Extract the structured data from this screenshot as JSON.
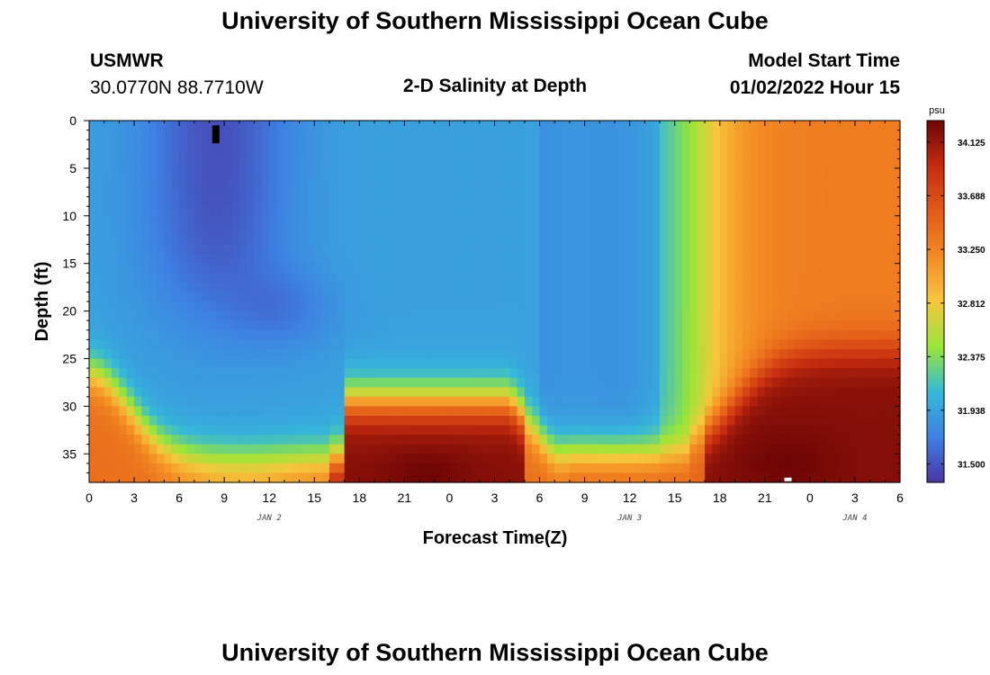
{
  "header": {
    "title": "University of Southern Mississippi Ocean Cube",
    "station": "USMWR",
    "coords": "30.0770N  88.7710W",
    "subtitle": "2-D Salinity at Depth",
    "model_label": "Model Start Time",
    "model_time": "01/02/2022 Hour 15"
  },
  "footer": {
    "title": "University of Southern Mississippi Ocean Cube"
  },
  "colors": {
    "colormap": [
      "#4a35a4",
      "#3e7fe3",
      "#35b9d9",
      "#98e636",
      "#f6c73c",
      "#f38a22",
      "#e25a18",
      "#c52b0f",
      "#6e0505"
    ]
  },
  "chart_data": {
    "type": "heatmap",
    "title": "2-D Salinity at Depth",
    "xlabel": "Forecast Time(Z)",
    "ylabel": "Depth (ft)",
    "x_tick_labels": [
      "0",
      "3",
      "6",
      "9",
      "12",
      "15",
      "18",
      "21",
      "0",
      "3",
      "6",
      "9",
      "12",
      "15",
      "18",
      "21",
      "0",
      "3",
      "6"
    ],
    "date_labels": [
      {
        "label": "JAN 2",
        "forecast_hour": 12
      },
      {
        "label": "JAN 3",
        "forecast_hour": 36
      },
      {
        "label": "JAN 4",
        "forecast_hour": 51
      }
    ],
    "xlim": [
      0,
      54
    ],
    "y_tick_labels": [
      "0",
      "5",
      "10",
      "15",
      "20",
      "25",
      "30",
      "35"
    ],
    "ylim": [
      0,
      38
    ],
    "colorbar": {
      "unit": "psu",
      "ticks": [
        "31.500",
        "31.938",
        "32.375",
        "32.812",
        "33.250",
        "33.688",
        "34.125"
      ],
      "range": [
        31.35,
        34.3
      ]
    },
    "features": [
      {
        "desc": "fresh core",
        "x": 8.5,
        "y": 9,
        "salinity": 31.35
      },
      {
        "desc": "bottom saline lens 1",
        "x": 22.5,
        "y": 37,
        "salinity": 34.25
      },
      {
        "desc": "bottom saline lens 2",
        "x": 46.5,
        "y": 36,
        "salinity": 34.3
      },
      {
        "desc": "surface saline after JAN 3 hour 12",
        "x": 50,
        "y": 5,
        "salinity": 33.3
      }
    ]
  }
}
